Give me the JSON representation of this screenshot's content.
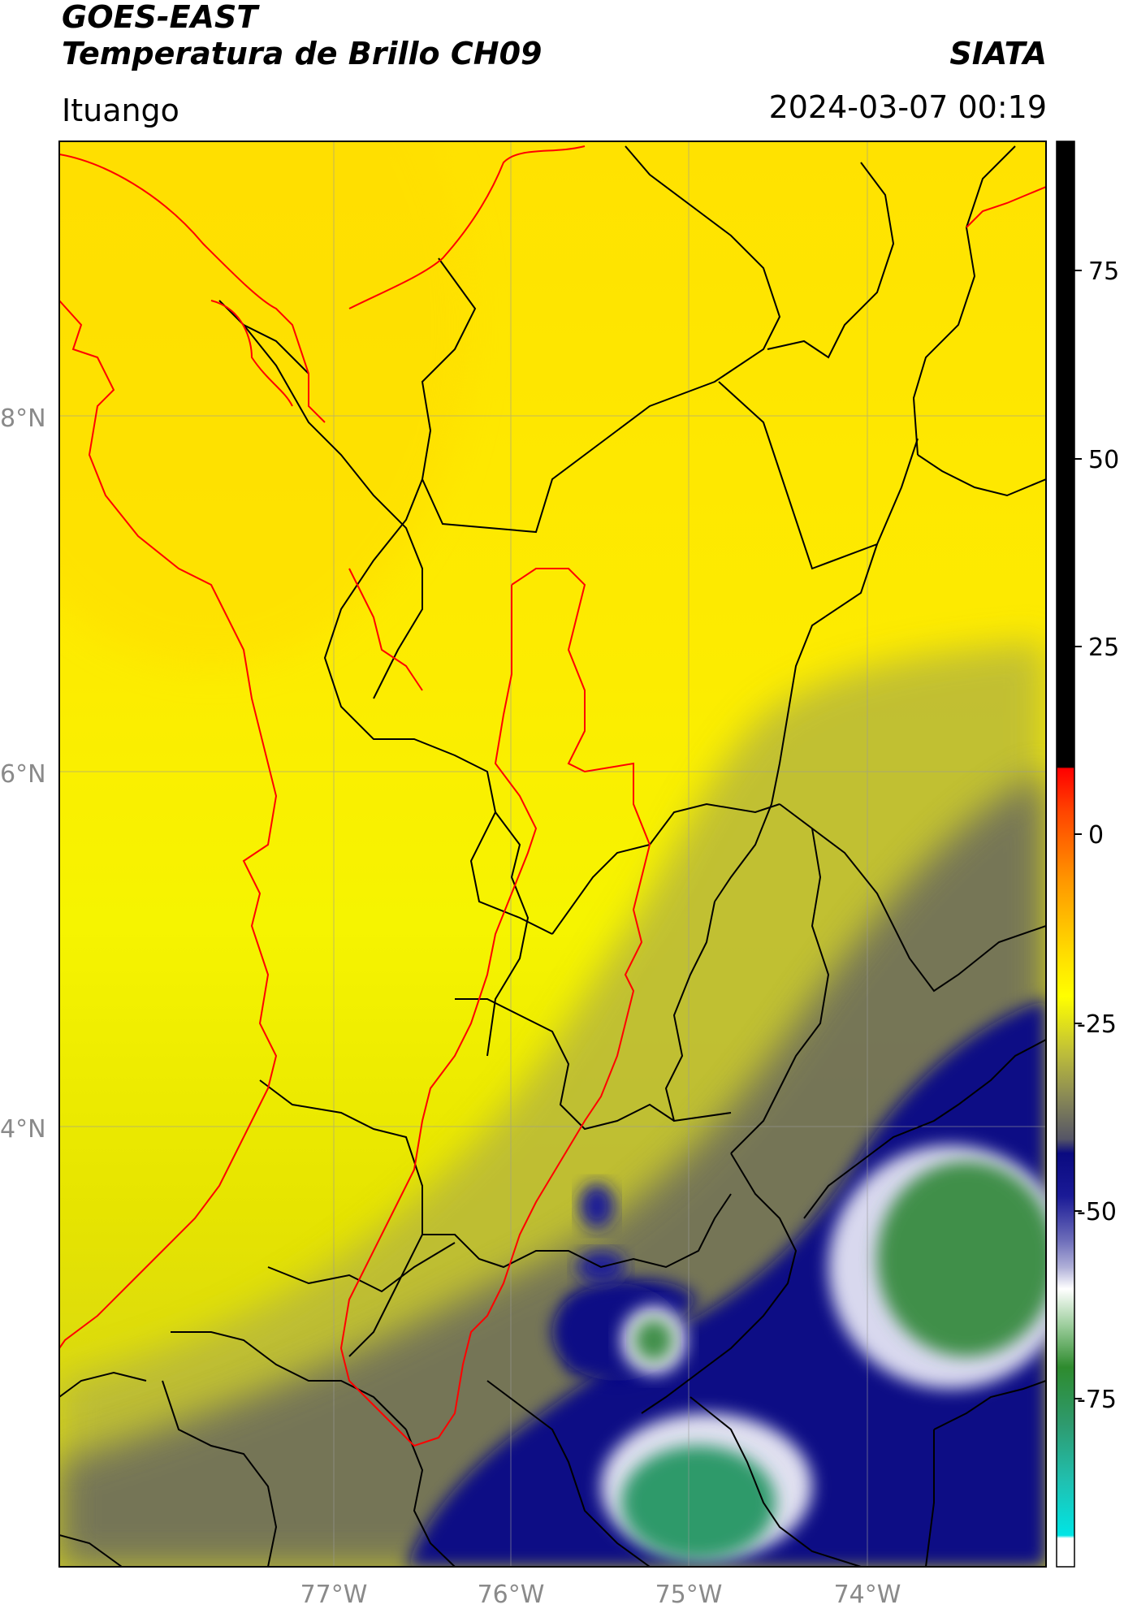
{
  "header": {
    "satellite": "GOES-EAST",
    "product": "Temperatura de Brillo CH09",
    "organization": "SIATA",
    "region": "Ituango",
    "datetime": "2024-03-07 00:19"
  },
  "axes": {
    "lat_ticks": [
      "8°N",
      "6°N",
      "4°N"
    ],
    "lon_ticks": [
      "77°W",
      "76°W",
      "75°W",
      "74°W"
    ]
  },
  "colorbar": {
    "tick_labels": [
      "75",
      "50",
      "25",
      "0",
      "-25",
      "-50",
      "-75"
    ],
    "colors": {
      "top": "#000000",
      "red": "#ff0000",
      "orange": "#ff9900",
      "yellow": "#ffff00",
      "olive": "#a9a93a",
      "grey": "#555566",
      "navy": "#0a0a80",
      "lavender": "#a9a9d6",
      "white": "#ffffff",
      "green": "#2e8b2e",
      "teal": "#20b2aa",
      "cyan": "#00e5e5"
    }
  },
  "map_colors": {
    "warm": "#ffe300",
    "yellow": "#f4f400",
    "olive": "#b5b535",
    "grey": "#6b6b59",
    "navy": "#0b0b85",
    "cold": "#3a8c52",
    "outline_black": "#000000",
    "outline_red": "#ff0000"
  }
}
